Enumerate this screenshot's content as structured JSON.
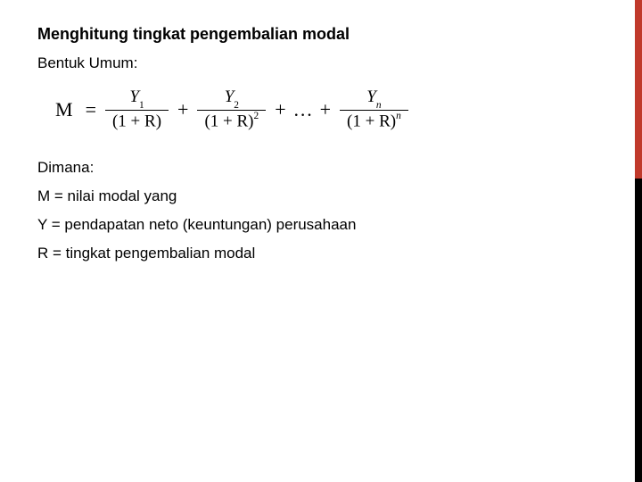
{
  "slide": {
    "title": "Menghitung tingkat pengembalian modal",
    "subtitle": "Bentuk Umum:",
    "where_heading": "Dimana:",
    "definitions": {
      "m": "M = nilai modal yang",
      "y": "Y = pendapatan neto (keuntungan) perusahaan",
      "r": "R = tingkat pengembalian modal"
    },
    "accent_color": "#c0392b",
    "formula": {
      "lhs": "M",
      "eq": "=",
      "terms": [
        {
          "numerator_var": "Y",
          "numerator_sub": "1",
          "denominator": "(1 + R)",
          "exp": ""
        },
        {
          "numerator_var": "Y",
          "numerator_sub": "2",
          "denominator": "(1 + R)",
          "exp": "2"
        },
        {
          "ellipsis": "…"
        },
        {
          "numerator_var": "Y",
          "numerator_sub": "n",
          "denominator": "(1 + R)",
          "exp": "n"
        }
      ],
      "plus": "+",
      "font_family": "Times New Roman",
      "font_size_pt": 16,
      "color": "#000000"
    },
    "text_color": "#000000",
    "background_color": "#ffffff",
    "body_font_size_pt": 13
  }
}
